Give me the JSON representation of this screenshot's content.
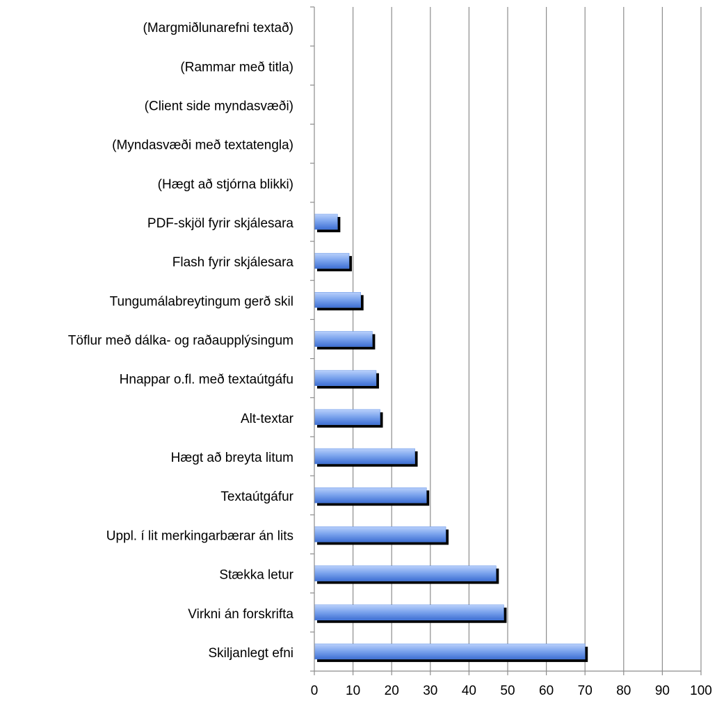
{
  "chart_data": {
    "type": "hbar",
    "categories": [
      "(Margmiðlunarefni textað)",
      "(Rammar með titla)",
      "(Client side myndasvæði)",
      "(Myndasvæði með textatengla)",
      "(Hægt að stjórna blikki)",
      "PDF-skjöl fyrir skjálesara",
      "Flash fyrir skjálesara",
      "Tungumálabreytingum gerð skil",
      "Töflur með dálka- og raðaupplýsingum",
      "Hnappar o.fl. með textaútgáfu",
      "Alt-textar",
      "Hægt að breyta litum",
      "Textaútgáfur",
      "Uppl. í lit merkingarbærar án lits",
      "Stækka letur",
      "Virkni án forskrifta",
      "Skiljanlegt efni"
    ],
    "values": [
      0,
      0,
      0,
      0,
      0,
      6,
      9,
      12,
      15,
      16,
      17,
      26,
      29,
      34,
      47,
      49,
      70
    ],
    "color": "#5b8ee6",
    "xlim": [
      0,
      100
    ],
    "xticks": [
      0,
      10,
      20,
      30,
      40,
      50,
      60,
      70,
      80,
      90,
      100
    ],
    "grid": true
  }
}
